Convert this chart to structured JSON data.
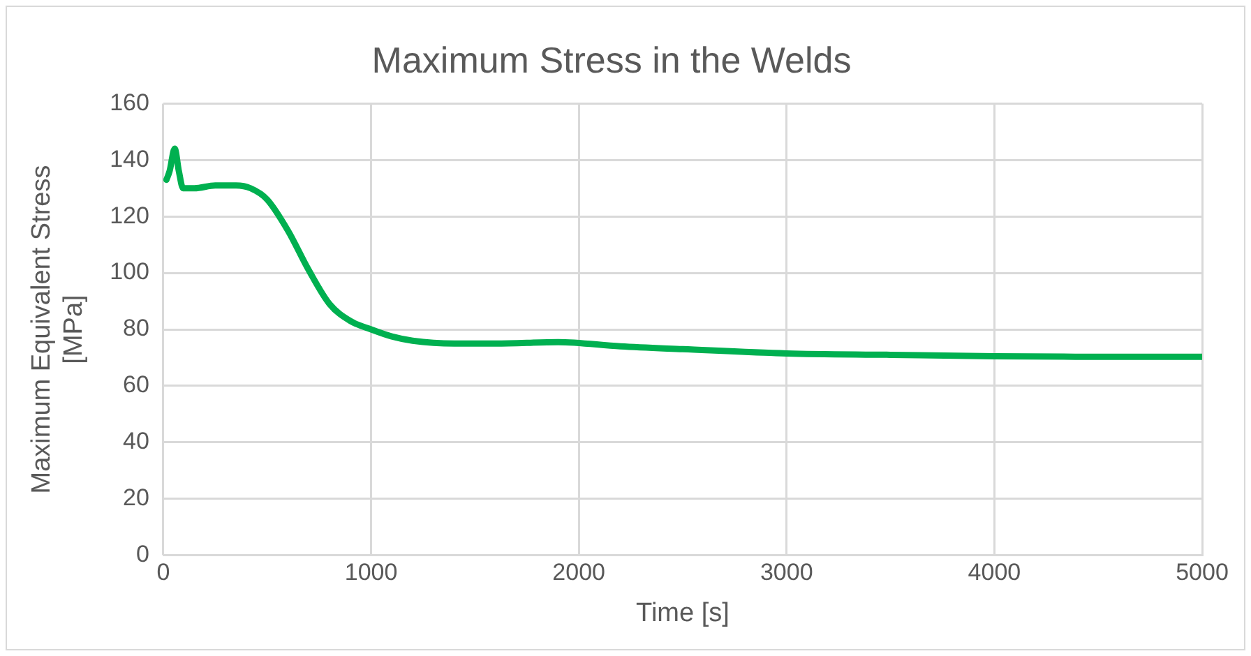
{
  "chart_data": {
    "type": "line",
    "title": "Maximum Stress in the Welds",
    "xlabel": "Time [s]",
    "ylabel": "Maximum Equivalent Stress [MPa]",
    "x": [
      15,
      30,
      55,
      75,
      95,
      150,
      250,
      350,
      420,
      500,
      600,
      700,
      800,
      900,
      1000,
      1100,
      1200,
      1400,
      1600,
      1900,
      2200,
      2500,
      3000,
      3500,
      4000,
      4500,
      5000
    ],
    "series": [
      {
        "color": "#00b050",
        "values": [
          133,
          136,
          144,
          136,
          130,
          130,
          131,
          131,
          130,
          126,
          115,
          101,
          89,
          83,
          80,
          77.5,
          76,
          75,
          75,
          75.5,
          74,
          73,
          71.5,
          71,
          70.5,
          70.3,
          70.3
        ]
      }
    ],
    "xlim": [
      0,
      5000
    ],
    "xticks": [
      0,
      1000,
      2000,
      3000,
      4000,
      5000
    ],
    "ylim": [
      0,
      160
    ],
    "yticks": [
      0,
      20,
      40,
      60,
      80,
      100,
      120,
      140,
      160
    ],
    "grid": true,
    "legend": false,
    "marker": "none",
    "line_style": "solid"
  }
}
